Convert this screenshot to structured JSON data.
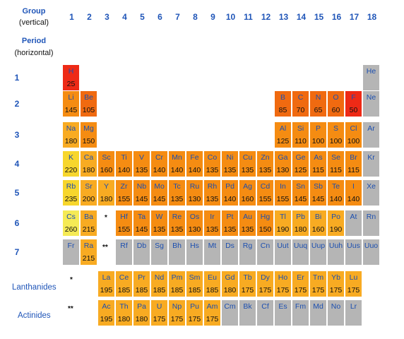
{
  "header": {
    "group_title": "Group",
    "group_sub": "(vertical)",
    "period_title": "Period",
    "period_sub": "(horizontal)"
  },
  "groups": [
    "1",
    "2",
    "3",
    "4",
    "5",
    "6",
    "7",
    "8",
    "9",
    "10",
    "11",
    "12",
    "13",
    "14",
    "15",
    "16",
    "17",
    "18"
  ],
  "periods": [
    "1",
    "2",
    "3",
    "4",
    "5",
    "6",
    "7"
  ],
  "series_labels": {
    "lanthanides": "Lanthanides",
    "actinides": "Actinides"
  },
  "markers": {
    "single": "*",
    "double": "**"
  },
  "colors": {
    "red": "#ee2a16",
    "orange_dark": "#f06a10",
    "orange": "#f58c12",
    "orange_light": "#f8ab22",
    "yellow": "#f7d62c",
    "yellow_light": "#f5ea55",
    "gray": "#b5b5b5"
  },
  "elements": [
    {
      "s": "H",
      "v": "25",
      "g": 1,
      "p": 1,
      "c": "red"
    },
    {
      "s": "He",
      "v": "",
      "g": 18,
      "p": 1,
      "c": "gray"
    },
    {
      "s": "Li",
      "v": "145",
      "g": 1,
      "p": 2,
      "c": "orange"
    },
    {
      "s": "Be",
      "v": "105",
      "g": 2,
      "p": 2,
      "c": "orange_dark"
    },
    {
      "s": "B",
      "v": "85",
      "g": 13,
      "p": 2,
      "c": "orange_dark"
    },
    {
      "s": "C",
      "v": "70",
      "g": 14,
      "p": 2,
      "c": "orange_dark"
    },
    {
      "s": "N",
      "v": "65",
      "g": 15,
      "p": 2,
      "c": "orange_dark"
    },
    {
      "s": "O",
      "v": "60",
      "g": 16,
      "p": 2,
      "c": "orange_dark"
    },
    {
      "s": "F",
      "v": "50",
      "g": 17,
      "p": 2,
      "c": "red"
    },
    {
      "s": "Ne",
      "v": "",
      "g": 18,
      "p": 2,
      "c": "gray"
    },
    {
      "s": "Na",
      "v": "180",
      "g": 1,
      "p": 3,
      "c": "orange_light"
    },
    {
      "s": "Mg",
      "v": "150",
      "g": 2,
      "p": 3,
      "c": "orange"
    },
    {
      "s": "Al",
      "v": "125",
      "g": 13,
      "p": 3,
      "c": "orange"
    },
    {
      "s": "Si",
      "v": "110",
      "g": 14,
      "p": 3,
      "c": "orange"
    },
    {
      "s": "P",
      "v": "100",
      "g": 15,
      "p": 3,
      "c": "orange"
    },
    {
      "s": "S",
      "v": "100",
      "g": 16,
      "p": 3,
      "c": "orange"
    },
    {
      "s": "Cl",
      "v": "100",
      "g": 17,
      "p": 3,
      "c": "orange"
    },
    {
      "s": "Ar",
      "v": "",
      "g": 18,
      "p": 3,
      "c": "gray"
    },
    {
      "s": "K",
      "v": "220",
      "g": 1,
      "p": 4,
      "c": "yellow"
    },
    {
      "s": "Ca",
      "v": "180",
      "g": 2,
      "p": 4,
      "c": "orange_light"
    },
    {
      "s": "Sc",
      "v": "160",
      "g": 3,
      "p": 4,
      "c": "orange"
    },
    {
      "s": "Ti",
      "v": "140",
      "g": 4,
      "p": 4,
      "c": "orange"
    },
    {
      "s": "V",
      "v": "135",
      "g": 5,
      "p": 4,
      "c": "orange"
    },
    {
      "s": "Cr",
      "v": "140",
      "g": 6,
      "p": 4,
      "c": "orange"
    },
    {
      "s": "Mn",
      "v": "140",
      "g": 7,
      "p": 4,
      "c": "orange"
    },
    {
      "s": "Fe",
      "v": "140",
      "g": 8,
      "p": 4,
      "c": "orange"
    },
    {
      "s": "Co",
      "v": "135",
      "g": 9,
      "p": 4,
      "c": "orange"
    },
    {
      "s": "Ni",
      "v": "135",
      "g": 10,
      "p": 4,
      "c": "orange"
    },
    {
      "s": "Cu",
      "v": "135",
      "g": 11,
      "p": 4,
      "c": "orange"
    },
    {
      "s": "Zn",
      "v": "135",
      "g": 12,
      "p": 4,
      "c": "orange"
    },
    {
      "s": "Ga",
      "v": "130",
      "g": 13,
      "p": 4,
      "c": "orange"
    },
    {
      "s": "Ge",
      "v": "125",
      "g": 14,
      "p": 4,
      "c": "orange"
    },
    {
      "s": "As",
      "v": "115",
      "g": 15,
      "p": 4,
      "c": "orange"
    },
    {
      "s": "Se",
      "v": "115",
      "g": 16,
      "p": 4,
      "c": "orange"
    },
    {
      "s": "Br",
      "v": "115",
      "g": 17,
      "p": 4,
      "c": "orange"
    },
    {
      "s": "Kr",
      "v": "",
      "g": 18,
      "p": 4,
      "c": "gray"
    },
    {
      "s": "Rb",
      "v": "235",
      "g": 1,
      "p": 5,
      "c": "yellow"
    },
    {
      "s": "Sr",
      "v": "200",
      "g": 2,
      "p": 5,
      "c": "orange_light"
    },
    {
      "s": "Y",
      "v": "180",
      "g": 3,
      "p": 5,
      "c": "orange_light"
    },
    {
      "s": "Zr",
      "v": "155",
      "g": 4,
      "p": 5,
      "c": "orange"
    },
    {
      "s": "Nb",
      "v": "145",
      "g": 5,
      "p": 5,
      "c": "orange"
    },
    {
      "s": "Mo",
      "v": "145",
      "g": 6,
      "p": 5,
      "c": "orange"
    },
    {
      "s": "Tc",
      "v": "135",
      "g": 7,
      "p": 5,
      "c": "orange"
    },
    {
      "s": "Ru",
      "v": "130",
      "g": 8,
      "p": 5,
      "c": "orange"
    },
    {
      "s": "Rh",
      "v": "135",
      "g": 9,
      "p": 5,
      "c": "orange"
    },
    {
      "s": "Pd",
      "v": "140",
      "g": 10,
      "p": 5,
      "c": "orange"
    },
    {
      "s": "Ag",
      "v": "160",
      "g": 11,
      "p": 5,
      "c": "orange"
    },
    {
      "s": "Cd",
      "v": "155",
      "g": 12,
      "p": 5,
      "c": "orange"
    },
    {
      "s": "In",
      "v": "155",
      "g": 13,
      "p": 5,
      "c": "orange"
    },
    {
      "s": "Sn",
      "v": "145",
      "g": 14,
      "p": 5,
      "c": "orange"
    },
    {
      "s": "Sb",
      "v": "145",
      "g": 15,
      "p": 5,
      "c": "orange"
    },
    {
      "s": "Te",
      "v": "140",
      "g": 16,
      "p": 5,
      "c": "orange"
    },
    {
      "s": "I",
      "v": "140",
      "g": 17,
      "p": 5,
      "c": "orange"
    },
    {
      "s": "Xe",
      "v": "",
      "g": 18,
      "p": 5,
      "c": "gray"
    },
    {
      "s": "Cs",
      "v": "260",
      "g": 1,
      "p": 6,
      "c": "yellow_light"
    },
    {
      "s": "Ba",
      "v": "215",
      "g": 2,
      "p": 6,
      "c": "orange_light"
    },
    {
      "s": "Hf",
      "v": "155",
      "g": 4,
      "p": 6,
      "c": "orange"
    },
    {
      "s": "Ta",
      "v": "145",
      "g": 5,
      "p": 6,
      "c": "orange"
    },
    {
      "s": "W",
      "v": "135",
      "g": 6,
      "p": 6,
      "c": "orange"
    },
    {
      "s": "Re",
      "v": "135",
      "g": 7,
      "p": 6,
      "c": "orange"
    },
    {
      "s": "Os",
      "v": "130",
      "g": 8,
      "p": 6,
      "c": "orange"
    },
    {
      "s": "Ir",
      "v": "135",
      "g": 9,
      "p": 6,
      "c": "orange"
    },
    {
      "s": "Pt",
      "v": "135",
      "g": 10,
      "p": 6,
      "c": "orange"
    },
    {
      "s": "Au",
      "v": "135",
      "g": 11,
      "p": 6,
      "c": "orange"
    },
    {
      "s": "Hg",
      "v": "150",
      "g": 12,
      "p": 6,
      "c": "orange"
    },
    {
      "s": "Tl",
      "v": "190",
      "g": 13,
      "p": 6,
      "c": "orange_light"
    },
    {
      "s": "Pb",
      "v": "180",
      "g": 14,
      "p": 6,
      "c": "orange_light"
    },
    {
      "s": "Bi",
      "v": "160",
      "g": 15,
      "p": 6,
      "c": "orange_light"
    },
    {
      "s": "Po",
      "v": "190",
      "g": 16,
      "p": 6,
      "c": "orange_light"
    },
    {
      "s": "At",
      "v": "",
      "g": 17,
      "p": 6,
      "c": "gray"
    },
    {
      "s": "Rn",
      "v": "",
      "g": 18,
      "p": 6,
      "c": "gray"
    },
    {
      "s": "Fr",
      "v": "",
      "g": 1,
      "p": 7,
      "c": "gray"
    },
    {
      "s": "Ra",
      "v": "215",
      "g": 2,
      "p": 7,
      "c": "orange_light"
    },
    {
      "s": "Rf",
      "v": "",
      "g": 4,
      "p": 7,
      "c": "gray"
    },
    {
      "s": "Db",
      "v": "",
      "g": 5,
      "p": 7,
      "c": "gray"
    },
    {
      "s": "Sg",
      "v": "",
      "g": 6,
      "p": 7,
      "c": "gray"
    },
    {
      "s": "Bh",
      "v": "",
      "g": 7,
      "p": 7,
      "c": "gray"
    },
    {
      "s": "Hs",
      "v": "",
      "g": 8,
      "p": 7,
      "c": "gray"
    },
    {
      "s": "Mt",
      "v": "",
      "g": 9,
      "p": 7,
      "c": "gray"
    },
    {
      "s": "Ds",
      "v": "",
      "g": 10,
      "p": 7,
      "c": "gray"
    },
    {
      "s": "Rg",
      "v": "",
      "g": 11,
      "p": 7,
      "c": "gray"
    },
    {
      "s": "Cn",
      "v": "",
      "g": 12,
      "p": 7,
      "c": "gray"
    },
    {
      "s": "Uut",
      "v": "",
      "g": 13,
      "p": 7,
      "c": "gray"
    },
    {
      "s": "Uuq",
      "v": "",
      "g": 14,
      "p": 7,
      "c": "gray"
    },
    {
      "s": "Uup",
      "v": "",
      "g": 15,
      "p": 7,
      "c": "gray"
    },
    {
      "s": "Uuh",
      "v": "",
      "g": 16,
      "p": 7,
      "c": "gray"
    },
    {
      "s": "Uus",
      "v": "",
      "g": 17,
      "p": 7,
      "c": "gray"
    },
    {
      "s": "Uuo",
      "v": "",
      "g": 18,
      "p": 7,
      "c": "gray"
    }
  ],
  "lanthanides": [
    {
      "s": "La",
      "v": "195",
      "c": "orange_light"
    },
    {
      "s": "Ce",
      "v": "185",
      "c": "orange_light"
    },
    {
      "s": "Pr",
      "v": "185",
      "c": "orange_light"
    },
    {
      "s": "Nd",
      "v": "185",
      "c": "orange_light"
    },
    {
      "s": "Pm",
      "v": "185",
      "c": "orange_light"
    },
    {
      "s": "Sm",
      "v": "185",
      "c": "orange_light"
    },
    {
      "s": "Eu",
      "v": "185",
      "c": "orange_light"
    },
    {
      "s": "Gd",
      "v": "180",
      "c": "orange_light"
    },
    {
      "s": "Tb",
      "v": "175",
      "c": "orange_light"
    },
    {
      "s": "Dy",
      "v": "175",
      "c": "orange_light"
    },
    {
      "s": "Ho",
      "v": "175",
      "c": "orange_light"
    },
    {
      "s": "Er",
      "v": "175",
      "c": "orange_light"
    },
    {
      "s": "Tm",
      "v": "175",
      "c": "orange_light"
    },
    {
      "s": "Yb",
      "v": "175",
      "c": "orange_light"
    },
    {
      "s": "Lu",
      "v": "175",
      "c": "orange_light"
    }
  ],
  "actinides": [
    {
      "s": "Ac",
      "v": "195",
      "c": "orange_light"
    },
    {
      "s": "Th",
      "v": "180",
      "c": "orange_light"
    },
    {
      "s": "Pa",
      "v": "180",
      "c": "orange_light"
    },
    {
      "s": "U",
      "v": "175",
      "c": "orange_light"
    },
    {
      "s": "Np",
      "v": "175",
      "c": "orange_light"
    },
    {
      "s": "Pu",
      "v": "175",
      "c": "orange_light"
    },
    {
      "s": "Am",
      "v": "175",
      "c": "orange_light"
    },
    {
      "s": "Cm",
      "v": "",
      "c": "gray"
    },
    {
      "s": "Bk",
      "v": "",
      "c": "gray"
    },
    {
      "s": "Cf",
      "v": "",
      "c": "gray"
    },
    {
      "s": "Es",
      "v": "",
      "c": "gray"
    },
    {
      "s": "Fm",
      "v": "",
      "c": "gray"
    },
    {
      "s": "Md",
      "v": "",
      "c": "gray"
    },
    {
      "s": "No",
      "v": "",
      "c": "gray"
    },
    {
      "s": "Lr",
      "v": "",
      "c": "gray"
    }
  ]
}
